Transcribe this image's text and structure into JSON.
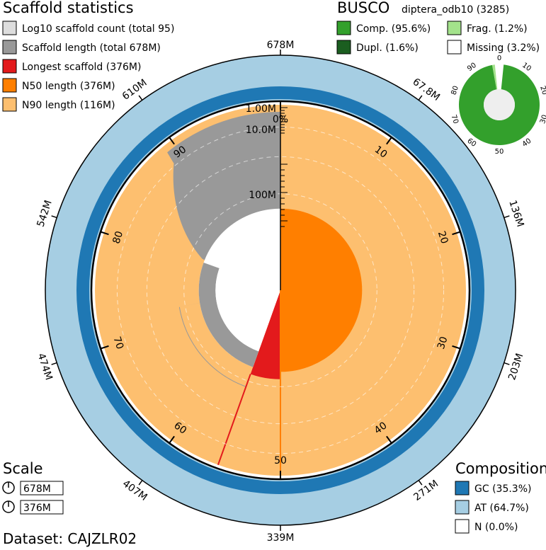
{
  "chart_data": {
    "type": "snail",
    "dataset_label": "Dataset: CAJZLR02",
    "scaffold_stats": {
      "title": "Scaffold statistics",
      "legend": [
        {
          "label": "Log10 scaffold count (total 95)",
          "color": "#dddddd"
        },
        {
          "label": "Scaffold length (total 678M)",
          "color": "#999999"
        },
        {
          "label": "Longest scaffold (376M)",
          "color": "#e31a1c"
        },
        {
          "label": "N50 length (376M)",
          "color": "#ff7f00"
        },
        {
          "label": "N90 length (116M)",
          "color": "#fdbf6f"
        }
      ],
      "total_length_label": "678M",
      "total_length": 678,
      "longest_scaffold": 376,
      "n50": 376,
      "n90": 116,
      "scaffold_count": 95,
      "radial_scale": {
        "labels": [
          "1.00M",
          "10.0M",
          "100M"
        ],
        "values": [
          1,
          10,
          100
        ]
      },
      "percent_ticks": [
        "0%",
        "10",
        "20",
        "30",
        "40",
        "50",
        "60",
        "70",
        "80",
        "90"
      ],
      "length_ticks": [
        "67.8M",
        "136M",
        "203M",
        "271M",
        "339M",
        "407M",
        "474M",
        "542M",
        "610M"
      ],
      "scaffold_length_curve": [
        {
          "pct": 0,
          "r": 0.55
        },
        {
          "pct": 55.5,
          "r": 0.55
        },
        {
          "pct": 72.5,
          "r": 0.42
        },
        {
          "pct": 72.6,
          "r": 0.41
        },
        {
          "pct": 77.5,
          "r": 0.395
        },
        {
          "pct": 80.5,
          "r": 0.37
        },
        {
          "pct": 80.6,
          "r": 0.27
        },
        {
          "pct": 85,
          "r": 0.22
        },
        {
          "pct": 88,
          "r": 0.19
        },
        {
          "pct": 89,
          "r": 0.17
        },
        {
          "pct": 89.5,
          "r": 0.1
        },
        {
          "pct": 92,
          "r": 0.09
        },
        {
          "pct": 95,
          "r": 0.07
        },
        {
          "pct": 97,
          "r": 0.06
        },
        {
          "pct": 100,
          "r": 0.05
        }
      ]
    },
    "busco": {
      "title": "BUSCO",
      "lineage": "diptera_odb10 (3285)",
      "legend": [
        {
          "label": "Comp. (95.6%)",
          "color": "#33a02c"
        },
        {
          "label": "Frag. (1.2%)",
          "color": "#a3e28b"
        },
        {
          "label": "Dupl. (1.6%)",
          "color": "#1b5e20"
        },
        {
          "label": "Missing (3.2%)",
          "color": "#ffffff"
        }
      ],
      "complete": 95.6,
      "duplicated": 1.6,
      "fragmented": 1.2,
      "missing": 3.2,
      "ticks": [
        "0",
        "10",
        "20",
        "30",
        "40",
        "50",
        "60",
        "70",
        "80",
        "90"
      ]
    },
    "composition": {
      "title": "Composition",
      "legend": [
        {
          "label": "GC (35.3%)",
          "color": "#1f78b4"
        },
        {
          "label": "AT (64.7%)",
          "color": "#a6cee3"
        },
        {
          "label": "N (0.0%)",
          "color": "#ffffff"
        }
      ],
      "gc": 35.3,
      "at": 64.7,
      "n": 0.0
    },
    "scale": {
      "title": "Scale",
      "items": [
        "678M",
        "376M"
      ]
    }
  }
}
